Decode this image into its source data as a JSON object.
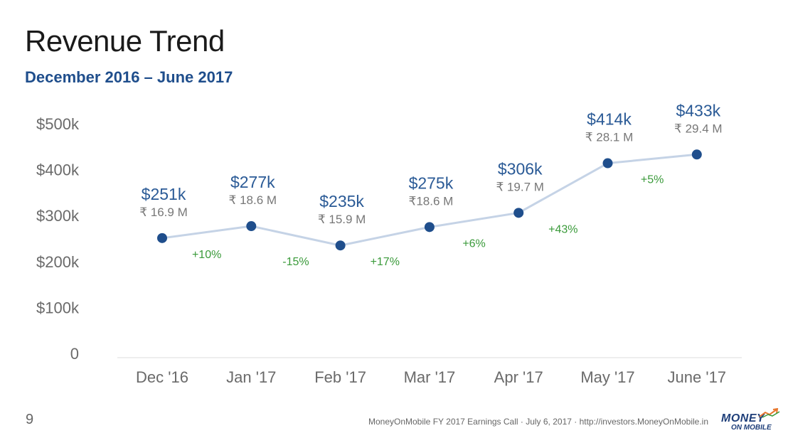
{
  "title": "Revenue Trend",
  "subtitle": "December 2016 – June 2017",
  "chart_data": {
    "type": "line",
    "categories": [
      "Dec '16",
      "Jan '17",
      "Feb '17",
      "Mar '17",
      "Apr '17",
      "May '17",
      "June '17"
    ],
    "values": [
      251,
      277,
      235,
      275,
      306,
      414,
      433
    ],
    "ylim": [
      0,
      500
    ],
    "yticks": [
      0,
      100,
      200,
      300,
      400,
      500
    ],
    "ytick_labels": [
      "0",
      "$100k",
      "$200k",
      "$300k",
      "$400k",
      "$500k"
    ],
    "value_labels": [
      "$251k",
      "$277k",
      "$235k",
      "$275k",
      "$306k",
      "$414k",
      "$433k"
    ],
    "inr_labels": [
      "₹ 16.9 M",
      "₹ 18.6 M",
      "₹ 15.9 M",
      "₹18.6 M",
      "₹ 19.7 M",
      "₹ 28.1 M",
      "₹ 29.4 M"
    ],
    "growth_labels": [
      "+10%",
      "-15%",
      "+17%",
      "+6%",
      "+43%",
      "+5%"
    ],
    "colors": {
      "line": "#c5d3e6",
      "marker": "#1f4e8c",
      "value_label": "#2a5a96",
      "inr_label": "#777777",
      "growth_label": "#3a9a3a",
      "axis_text": "#6a6a6a",
      "baseline": "#dddddd"
    },
    "grid": false,
    "legend": "none"
  },
  "footer": {
    "page_number": "9",
    "text": "MoneyOnMobile FY 2017 Earnings Call  · July 6, 2017  ·  http://investors.MoneyOnMobile.in",
    "logo_line1": "MONEY",
    "logo_line2": "ON MOBILE"
  }
}
